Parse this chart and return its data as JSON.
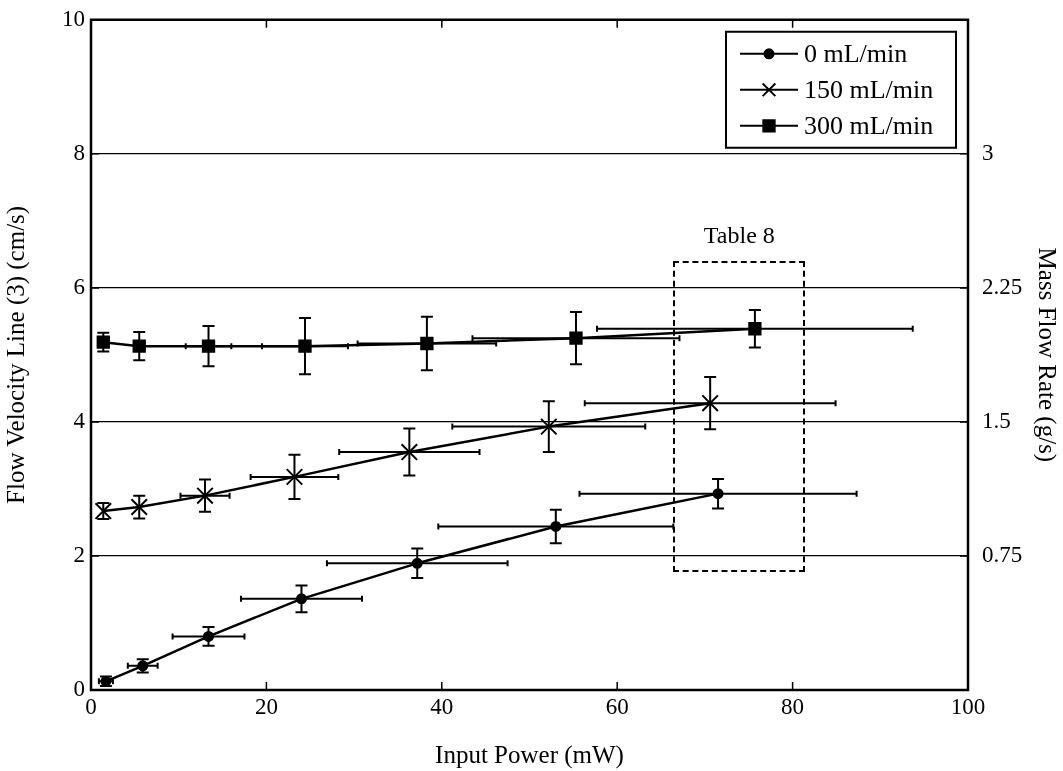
{
  "chart_data": {
    "type": "line",
    "xlabel": "Input Power (mW)",
    "ylabel": "Flow Velocity Line (3) (cm/s)",
    "y2label": "Mass Flow Rate (g/s)",
    "xlim": [
      0,
      100
    ],
    "xticks": [
      0,
      20,
      40,
      60,
      80,
      100
    ],
    "ylim": [
      0,
      10
    ],
    "yticks": [
      0,
      2,
      4,
      6,
      8,
      10
    ],
    "y2lim": [
      0,
      3.75
    ],
    "y2ticks": [
      0.75,
      1.5,
      2.25,
      3
    ],
    "grid": "y",
    "legend": "top right",
    "line_style": "solid",
    "annotations": [
      "Table 8"
    ],
    "series": [
      {
        "name": "0 mL/min",
        "color": "#000000",
        "marker": "circle",
        "x": [
          1.7,
          5.9,
          13.4,
          24.0,
          37.2,
          53.0,
          71.5
        ],
        "values": [
          0.13,
          0.36,
          0.8,
          1.36,
          1.89,
          2.44,
          2.93
        ],
        "errors": [
          0.07,
          0.1,
          0.14,
          0.2,
          0.22,
          0.25,
          0.22
        ],
        "xerrors": [
          0.8,
          1.7,
          4.1,
          6.9,
          10.3,
          13.4,
          15.8
        ]
      },
      {
        "name": "150 mL/min",
        "color": "#000000",
        "marker": "cross",
        "x": [
          1.4,
          5.5,
          13.0,
          23.2,
          36.3,
          52.2,
          70.6
        ],
        "values": [
          2.67,
          2.73,
          2.9,
          3.18,
          3.55,
          3.93,
          4.28
        ],
        "errors": [
          0.12,
          0.17,
          0.24,
          0.33,
          0.35,
          0.38,
          0.39
        ],
        "xerrors": [
          null,
          null,
          2.8,
          5.0,
          8.0,
          11.0,
          14.3
        ]
      },
      {
        "name": "300 mL/min",
        "color": "#000000",
        "marker": "square",
        "x": [
          1.4,
          5.5,
          13.4,
          24.4,
          38.3,
          55.3,
          75.7
        ],
        "values": [
          5.19,
          5.13,
          5.13,
          5.13,
          5.17,
          5.25,
          5.39
        ],
        "errors": [
          0.14,
          0.21,
          0.3,
          0.42,
          0.4,
          0.39,
          0.28
        ],
        "xerrors": [
          null,
          null,
          2.6,
          4.9,
          7.9,
          11.8,
          18.0
        ]
      }
    ]
  }
}
